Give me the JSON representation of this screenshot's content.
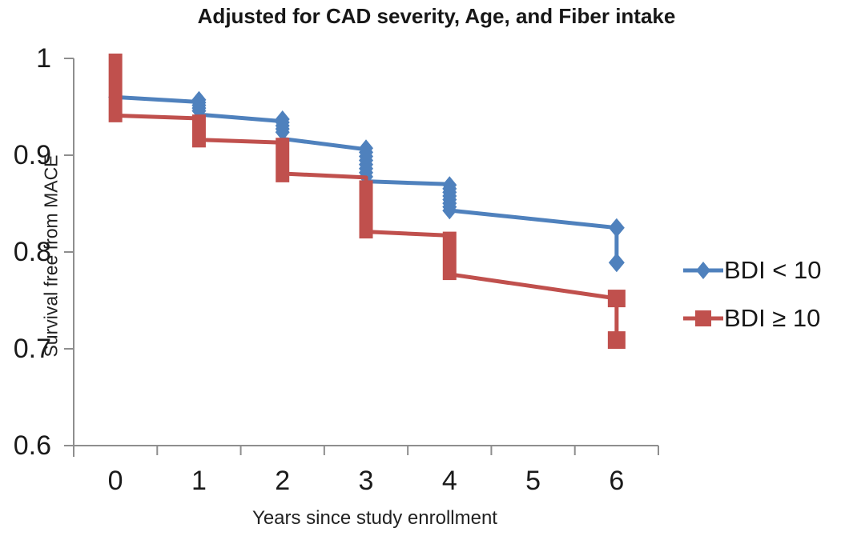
{
  "figure": {
    "title": "Adjusted for CAD severity, Age, and Fiber intake",
    "x_axis": {
      "label": "Years since study enrollment"
    },
    "y_axis": {
      "label": "Survival free from MACE"
    }
  },
  "chart_data": {
    "type": "line",
    "subtype": "survival-curve",
    "title": "Adjusted for CAD severity, Age, and Fiber intake",
    "xlabel": "Years since study enrollment",
    "ylabel": "Survival free from MACE",
    "ylim": [
      0.6,
      1.0
    ],
    "grid": false,
    "legend_position": "right",
    "axis_color": "#8e8e8e",
    "x_ticks": [
      {
        "value": 0,
        "label": "0"
      },
      {
        "value": 1,
        "label": "1"
      },
      {
        "value": 2,
        "label": "2"
      },
      {
        "value": 3,
        "label": "3"
      },
      {
        "value": 4,
        "label": "4"
      },
      {
        "value": 5,
        "label": "5"
      },
      {
        "value": 6,
        "label": "6"
      }
    ],
    "y_ticks": [
      {
        "value": 1.0,
        "label": "1"
      },
      {
        "value": 0.9,
        "label": "0.9"
      },
      {
        "value": 0.8,
        "label": "0.8"
      },
      {
        "value": 0.7,
        "label": "0.7"
      },
      {
        "value": 0.6,
        "label": "0.6"
      }
    ],
    "series": [
      {
        "name": "BDI < 10",
        "color": "#4f81bd",
        "marker": "diamond",
        "points": [
          {
            "x": 0,
            "arrive": 0.96,
            "leave": 0.96,
            "stack": null,
            "pair": false,
            "markers": [
              0.96
            ]
          },
          {
            "x": 1,
            "arrive": 0.955,
            "leave": 0.942,
            "stack": [
              0.963,
              0.94
            ],
            "pair": false,
            "markers": null
          },
          {
            "x": 2,
            "arrive": 0.935,
            "leave": 0.917,
            "stack": [
              0.943,
              0.918
            ],
            "pair": false,
            "markers": null
          },
          {
            "x": 3,
            "arrive": 0.906,
            "leave": 0.873,
            "stack": [
              0.913,
              0.872
            ],
            "pair": false,
            "markers": null
          },
          {
            "x": 4,
            "arrive": 0.87,
            "leave": 0.843,
            "stack": [
              0.875,
              0.837
            ],
            "pair": false,
            "markers": null
          },
          {
            "x": 6,
            "arrive": 0.825,
            "leave": 0.789,
            "stack": null,
            "pair": true,
            "markers": null
          }
        ]
      },
      {
        "name": "BDI ≥ 10",
        "color": "#c0504d",
        "marker": "square",
        "points": [
          {
            "x": 0,
            "arrive": 0.941,
            "leave": 0.941,
            "stack": [
              1.005,
              0.934
            ],
            "pair": false,
            "markers": null
          },
          {
            "x": 1,
            "arrive": 0.938,
            "leave": 0.916,
            "stack": [
              0.942,
              0.908
            ],
            "pair": false,
            "markers": null
          },
          {
            "x": 2,
            "arrive": 0.913,
            "leave": 0.881,
            "stack": [
              0.918,
              0.872
            ],
            "pair": false,
            "markers": null
          },
          {
            "x": 3,
            "arrive": 0.877,
            "leave": 0.821,
            "stack": [
              0.874,
              0.814
            ],
            "pair": false,
            "markers": null
          },
          {
            "x": 4,
            "arrive": 0.817,
            "leave": 0.777,
            "stack": [
              0.821,
              0.771
            ],
            "pair": false,
            "markers": null
          },
          {
            "x": 6,
            "arrive": 0.752,
            "leave": 0.709,
            "stack": null,
            "pair": true,
            "markers": null
          }
        ]
      }
    ]
  }
}
